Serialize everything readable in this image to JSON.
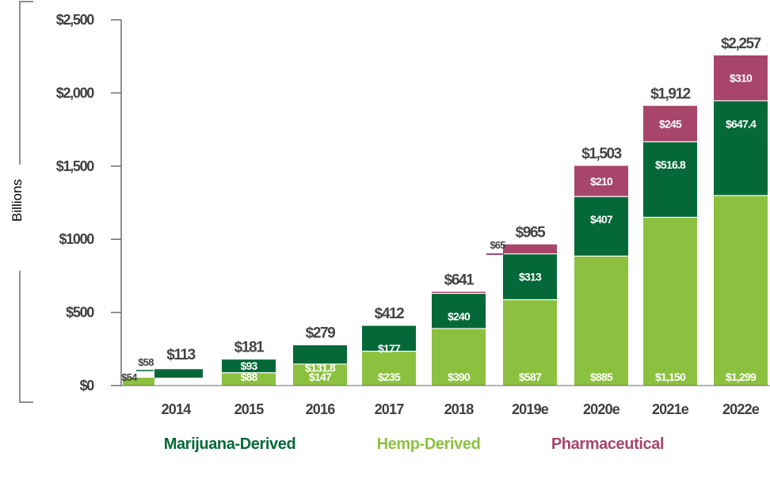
{
  "chart_data": {
    "type": "bar",
    "stacked": true,
    "ylabel": "Billions",
    "ylim": [
      0,
      2500
    ],
    "y_ticks": [
      "$0",
      "$500",
      "$1000",
      "$1,500",
      "$2,000",
      "$2,500"
    ],
    "y_tick_values": [
      0,
      500,
      1000,
      1500,
      2000,
      2500
    ],
    "categories": [
      "2014",
      "2015",
      "2016",
      "2017",
      "2018",
      "2019e",
      "2020e",
      "2021e",
      "2022e"
    ],
    "series": [
      {
        "name": "Hemp-Derived",
        "color": "#8cc13f",
        "values": [
          54,
          88,
          147,
          235,
          390,
          587,
          885,
          1150,
          1299
        ],
        "labels": [
          "$54",
          "$88",
          "$147",
          "$235",
          "$390",
          "$587",
          "$885",
          "$1,150",
          "$1,299"
        ]
      },
      {
        "name": "Marijuana-Derived",
        "color": "#056839",
        "values": [
          58,
          93,
          131.8,
          177,
          240,
          313,
          407,
          516.8,
          647.4
        ],
        "labels": [
          "$58",
          "$93",
          "$131.8",
          "$177",
          "$240",
          "$313",
          "$407",
          "$516.8",
          "$647.4"
        ]
      },
      {
        "name": "Pharmaceutical",
        "color": "#a8456b",
        "values": [
          0,
          0,
          0,
          0,
          11,
          65,
          210,
          245,
          310
        ],
        "labels": [
          "",
          "",
          "",
          "",
          "",
          "$65",
          "$210",
          "$245",
          "$310"
        ]
      }
    ],
    "totals": [
      "$113",
      "$181",
      "$279",
      "$412",
      "$641",
      "$965",
      "$1,503",
      "$1,912",
      "$2,257"
    ],
    "total_values": [
      113,
      181,
      279,
      412,
      641,
      965,
      1503,
      1912,
      2257
    ],
    "legend": [
      {
        "label": "Marijuana-Derived",
        "color": "#056839"
      },
      {
        "label": "Hemp-Derived",
        "color": "#8cc13f"
      },
      {
        "label": "Pharmaceutical",
        "color": "#a8456b"
      }
    ],
    "legend_position": "bottom",
    "grid": false
  }
}
